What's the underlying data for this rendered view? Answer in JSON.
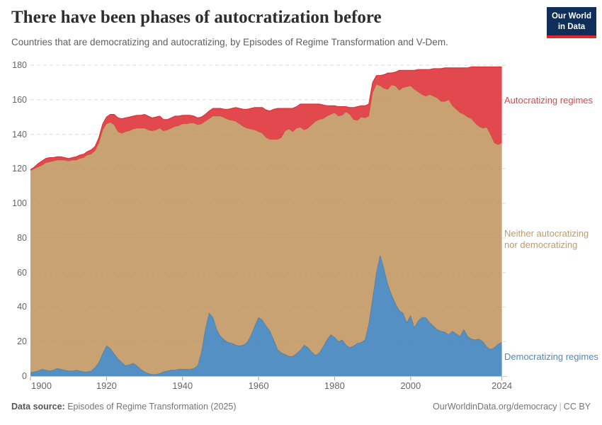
{
  "header": {
    "title": "There have been phases of autocratization before",
    "subtitle": "Countries that are democratizing and autocratizing, by Episodes of Regime Transformation and V-Dem.",
    "logo": {
      "line1": "Our World",
      "line2": "in Data"
    },
    "logo_colors": {
      "background": "#0f2e5a",
      "underline": "#e0252c"
    }
  },
  "chart_data": {
    "type": "area",
    "stacked": true,
    "title": "There have been phases of autocratization before",
    "xlabel": "",
    "ylabel": "",
    "ylim": [
      0,
      180
    ],
    "yticks": [
      0,
      20,
      40,
      60,
      80,
      100,
      120,
      140,
      160,
      180
    ],
    "xticks": [
      1900,
      1920,
      1940,
      1960,
      1980,
      2000,
      2024
    ],
    "grid": "dashed-horizontal",
    "legend_position": "right",
    "years": [
      1900,
      1901,
      1902,
      1903,
      1904,
      1905,
      1906,
      1907,
      1908,
      1909,
      1910,
      1911,
      1912,
      1913,
      1914,
      1915,
      1916,
      1917,
      1918,
      1919,
      1920,
      1921,
      1922,
      1923,
      1924,
      1925,
      1926,
      1927,
      1928,
      1929,
      1930,
      1931,
      1932,
      1933,
      1934,
      1935,
      1936,
      1937,
      1938,
      1939,
      1940,
      1941,
      1942,
      1943,
      1944,
      1945,
      1946,
      1947,
      1948,
      1949,
      1950,
      1951,
      1952,
      1953,
      1954,
      1955,
      1956,
      1957,
      1958,
      1959,
      1960,
      1961,
      1962,
      1963,
      1964,
      1965,
      1966,
      1967,
      1968,
      1969,
      1970,
      1971,
      1972,
      1973,
      1974,
      1975,
      1976,
      1977,
      1978,
      1979,
      1980,
      1981,
      1982,
      1983,
      1984,
      1985,
      1986,
      1987,
      1988,
      1989,
      1990,
      1991,
      1992,
      1993,
      1994,
      1995,
      1996,
      1997,
      1998,
      1999,
      2000,
      2001,
      2002,
      2003,
      2004,
      2005,
      2006,
      2007,
      2008,
      2009,
      2010,
      2011,
      2012,
      2013,
      2014,
      2015,
      2016,
      2017,
      2018,
      2019,
      2020,
      2021,
      2022,
      2023,
      2024
    ],
    "series": [
      {
        "id": "democratizing",
        "name": "Democratizing regimes",
        "color": "#377dba",
        "values": [
          2,
          2.5,
          3,
          4,
          3.5,
          3,
          3.5,
          4.5,
          4,
          3.5,
          3,
          3,
          3.5,
          3,
          2.5,
          2.5,
          3,
          5,
          8,
          13,
          17.5,
          16,
          13,
          10,
          8,
          6,
          6.5,
          7.5,
          6,
          4,
          2.5,
          1.5,
          1,
          1,
          1.5,
          2.5,
          3,
          3.5,
          3.5,
          4,
          4,
          4,
          4,
          4.5,
          6,
          14,
          27,
          36.5,
          34,
          27,
          23,
          21,
          19.5,
          19,
          18,
          17.5,
          18,
          19.5,
          23.5,
          29,
          34,
          32.5,
          29,
          26,
          21,
          15.5,
          13.5,
          12.5,
          11.5,
          11.5,
          13,
          15,
          18,
          16.5,
          14,
          12,
          13.5,
          17,
          21,
          24,
          22.5,
          20,
          21,
          18,
          16.5,
          17.5,
          19,
          19.5,
          21,
          30,
          45,
          60,
          70,
          62,
          53,
          47,
          42,
          38,
          36.5,
          31,
          35,
          28,
          32,
          34,
          34,
          31,
          29,
          27,
          26,
          25.5,
          24,
          26,
          24.5,
          23,
          27,
          23,
          21.5,
          21,
          21.5,
          20,
          17,
          15.5,
          16.5,
          18.5,
          19.5
        ]
      },
      {
        "id": "neither",
        "name": "Neither autocratizing nor democratizing",
        "color": "#be925a",
        "values": [
          117,
          117.5,
          118,
          118,
          120,
          121,
          121,
          120.5,
          121,
          121.5,
          121.5,
          122,
          121.5,
          123,
          124,
          125.5,
          125.5,
          125.5,
          127,
          129.5,
          128.5,
          131,
          132.5,
          131.5,
          132.5,
          135.5,
          135.5,
          135.5,
          137.5,
          139.5,
          141,
          141,
          141,
          141.5,
          142,
          139.5,
          139.5,
          140,
          141,
          141,
          142,
          142,
          142.5,
          142,
          139.5,
          132,
          120.5,
          112.5,
          116.5,
          123.5,
          127.5,
          128.5,
          129,
          129,
          129.5,
          128.5,
          126.5,
          124,
          119.5,
          113.5,
          107.5,
          108,
          109,
          111,
          116,
          121.5,
          124.5,
          129.5,
          131.5,
          130,
          130.5,
          129,
          124.5,
          127,
          131.5,
          135.5,
          135,
          132,
          129.5,
          127.5,
          130,
          130.5,
          130,
          135,
          135,
          131,
          129,
          130.5,
          128.5,
          120.5,
          119,
          109,
          98,
          104.5,
          113,
          121.5,
          126,
          127.5,
          130.5,
          136.5,
          133,
          138,
          132.5,
          129,
          128,
          132,
          133,
          134,
          133,
          133.5,
          136,
          130.5,
          130,
          129.5,
          124.5,
          127,
          127.5,
          125.5,
          123,
          123.5,
          127,
          124.5,
          118.5,
          115.5,
          115.5
        ]
      },
      {
        "id": "autocratizing",
        "name": "Autocratizing regimes",
        "color": "#dc2930",
        "values": [
          0.5,
          1,
          2,
          2.5,
          2.5,
          2.5,
          2,
          2,
          2,
          1.5,
          1.5,
          1.5,
          2,
          2,
          2,
          2,
          2.5,
          2.5,
          3,
          3.5,
          4,
          4.5,
          6,
          8,
          8.5,
          8,
          8,
          7.5,
          7.5,
          7.5,
          8,
          8,
          7.5,
          7.5,
          7,
          6.5,
          6,
          6,
          6,
          5.5,
          5,
          5,
          4.5,
          4,
          4,
          4,
          4,
          4.5,
          4.5,
          4.5,
          4.5,
          5,
          6,
          7,
          8,
          9,
          10,
          11,
          12,
          13,
          14,
          15,
          16,
          16.5,
          17.5,
          18,
          17,
          13,
          12,
          13.5,
          12.5,
          13.5,
          15,
          14,
          12,
          10,
          9,
          8,
          6,
          5,
          4,
          5.5,
          5,
          3,
          4,
          7,
          8,
          6.5,
          7,
          7,
          6,
          5,
          6,
          8,
          9.5,
          7,
          8,
          11.5,
          10,
          9.5,
          9,
          11,
          13,
          14.5,
          15.5,
          14.5,
          16,
          17,
          19,
          19.5,
          18.5,
          22,
          24,
          26,
          27,
          28.5,
          30,
          32.5,
          34.5,
          35.5,
          35,
          39,
          44,
          45,
          44
        ]
      }
    ]
  },
  "legend": {
    "items": [
      {
        "id": "autocratizing",
        "label": "Autocratizing regimes",
        "color": "#d2484f"
      },
      {
        "id": "neither",
        "label": "Neither autocratizing nor democratizing",
        "color": "#c09a66"
      },
      {
        "id": "democratizing",
        "label": "Democratizing regimes",
        "color": "#5089bd"
      }
    ]
  },
  "footer": {
    "datasource_label": "Data source:",
    "datasource_value": " Episodes of Regime Transformation (2025)",
    "credit": "OurWorldinData.org/democracy",
    "separator": "|",
    "license": "CC BY"
  }
}
